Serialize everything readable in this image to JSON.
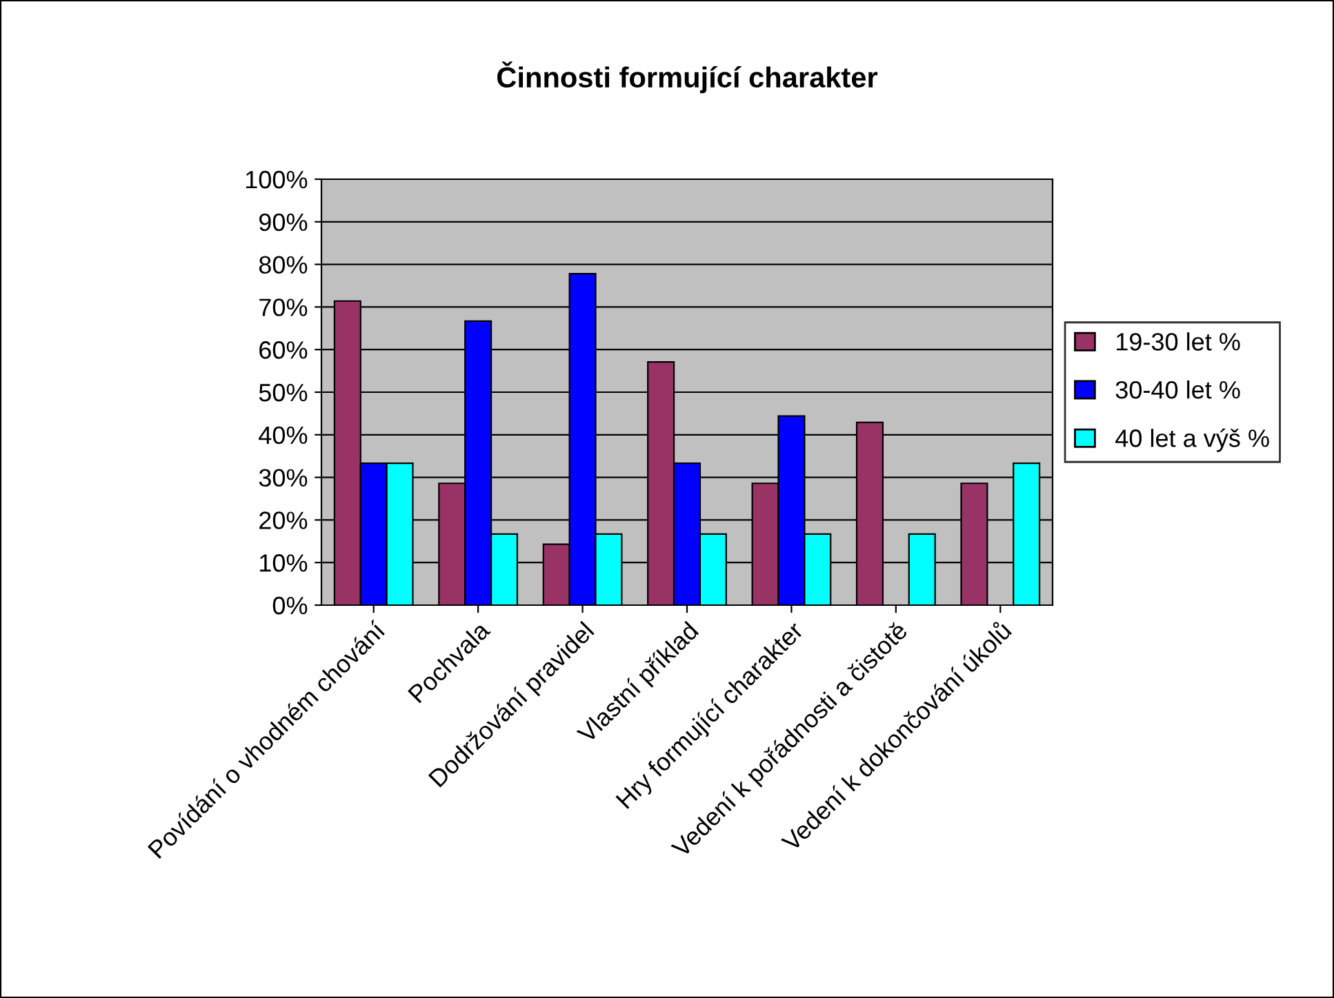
{
  "chart_data": {
    "type": "bar",
    "title": "Činnosti formující charakter",
    "categories": [
      "Povídání o vhodném chování",
      "Pochvala",
      "Dodržování pravidel",
      "Vlastní příklad",
      "Hry formující charakter",
      "Vedení k pořádnosti a čistotě",
      "Vedení k dokončování úkolů"
    ],
    "series": [
      {
        "name": "19-30 let %",
        "color": "#993366",
        "values": [
          71.4,
          28.6,
          14.3,
          57.1,
          28.6,
          42.9,
          28.6
        ]
      },
      {
        "name": "30-40 let %",
        "color": "#0000ff",
        "values": [
          33.3,
          66.7,
          77.8,
          33.3,
          44.4,
          null,
          null
        ]
      },
      {
        "name": "40 let a výš %",
        "color": "#00ffff",
        "values": [
          33.3,
          16.7,
          16.7,
          16.7,
          16.7,
          16.7,
          33.3
        ]
      }
    ],
    "ylim": [
      0,
      100
    ],
    "yticks": [
      {
        "value": 0,
        "label": "0%"
      },
      {
        "value": 10,
        "label": "10%"
      },
      {
        "value": 20,
        "label": "20%"
      },
      {
        "value": 30,
        "label": "30%"
      },
      {
        "value": 40,
        "label": "40%"
      },
      {
        "value": 50,
        "label": "50%"
      },
      {
        "value": 60,
        "label": "60%"
      },
      {
        "value": 70,
        "label": "70%"
      },
      {
        "value": 80,
        "label": "80%"
      },
      {
        "value": 90,
        "label": "90%"
      },
      {
        "value": 100,
        "label": "100%"
      }
    ],
    "grid": "y",
    "legend": "right"
  }
}
